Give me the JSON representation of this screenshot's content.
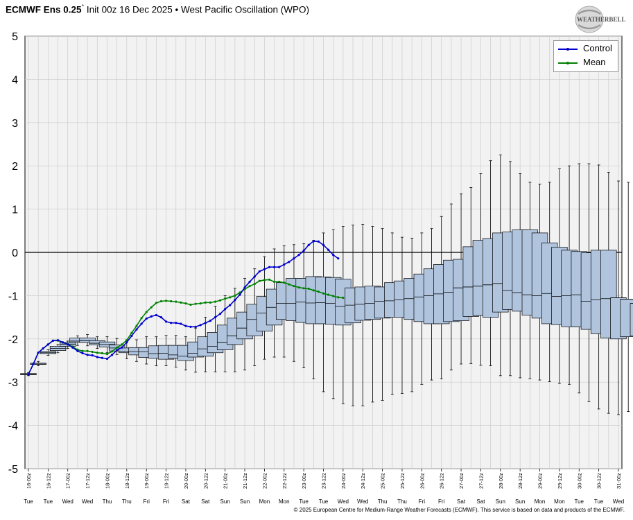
{
  "header": {
    "title_bold": "ECMWF Ens 0.25",
    "title_degree": "°",
    "title_rest": "Init 00z 16 Dec 2025 • West Pacific Oscillation (WPO)"
  },
  "logo": {
    "text": "WEATHERBELL"
  },
  "footer": {
    "credit": "© 2025 European Centre for Medium-Range Weather Forecasts (ECMWF). This service is based on data and products of the ECMWF."
  },
  "colors": {
    "control": "#0000cc",
    "mean": "#008000",
    "box_fill": "#b0c4de",
    "plot_bg": "#f2f2f2",
    "grid": "#cccccc"
  },
  "chart_data": {
    "type": "box-line",
    "ylim": [
      -5,
      5
    ],
    "yticks": [
      5,
      4,
      3,
      2,
      1,
      0,
      -1,
      -2,
      -3,
      -4,
      -5
    ],
    "legend_position": "top-right",
    "grid": true,
    "x_tick_labels": [
      "16-00z",
      "16-12z",
      "17-00z",
      "17-12z",
      "18-00z",
      "18-12z",
      "19-00z",
      "19-12z",
      "20-00z",
      "20-12z",
      "21-00z",
      "21-12z",
      "22-00z",
      "22-12z",
      "23-00z",
      "23-12z",
      "24-00z",
      "24-12z",
      "25-00z",
      "25-12z",
      "26-00z",
      "26-12z",
      "27-00z",
      "27-12z",
      "28-00z",
      "28-12z",
      "29-00z",
      "29-12z",
      "30-00z",
      "30-12z",
      "31-00z"
    ],
    "x_day_labels": [
      "Tue",
      "Tue",
      "Wed",
      "Wed",
      "Thu",
      "Thu",
      "Fri",
      "Fri",
      "Sat",
      "Sat",
      "Sun",
      "Sun",
      "Mon",
      "Mon",
      "Tue",
      "Tue",
      "Wed",
      "Wed",
      "Thu",
      "Thu",
      "Fri",
      "Fri",
      "Sat",
      "Sat",
      "Sun",
      "Sun",
      "Mon",
      "Mon",
      "Tue",
      "Tue",
      "Wed"
    ],
    "series": [
      {
        "name": "Control",
        "color": "#0000cc",
        "values": [
          -2.82,
          -2.58,
          -2.32,
          -2.22,
          -2.13,
          -2.04,
          -2.03,
          -2.08,
          -2.13,
          -2.2,
          -2.28,
          -2.33,
          -2.37,
          -2.38,
          -2.42,
          -2.44,
          -2.46,
          -2.37,
          -2.26,
          -2.2,
          -2.08,
          -1.93,
          -1.78,
          -1.65,
          -1.53,
          -1.48,
          -1.45,
          -1.5,
          -1.6,
          -1.63,
          -1.63,
          -1.65,
          -1.7,
          -1.72,
          -1.72,
          -1.68,
          -1.63,
          -1.58,
          -1.5,
          -1.42,
          -1.31,
          -1.22,
          -1.1,
          -0.98,
          -0.81,
          -0.68,
          -0.56,
          -0.44,
          -0.39,
          -0.34,
          -0.34,
          -0.34,
          -0.28,
          -0.22,
          -0.14,
          -0.06,
          0.04,
          0.17,
          0.26,
          0.25,
          0.17,
          0.06,
          -0.06,
          -0.14
        ]
      },
      {
        "name": "Mean",
        "color": "#008000",
        "values": [
          -2.82,
          -2.58,
          -2.32,
          -2.22,
          -2.13,
          -2.04,
          -2.04,
          -2.08,
          -2.12,
          -2.18,
          -2.25,
          -2.28,
          -2.28,
          -2.3,
          -2.32,
          -2.33,
          -2.35,
          -2.29,
          -2.2,
          -2.13,
          -2.03,
          -1.86,
          -1.7,
          -1.52,
          -1.38,
          -1.27,
          -1.17,
          -1.13,
          -1.12,
          -1.13,
          -1.14,
          -1.16,
          -1.18,
          -1.21,
          -1.19,
          -1.18,
          -1.16,
          -1.16,
          -1.14,
          -1.11,
          -1.07,
          -1.04,
          -1.0,
          -0.93,
          -0.85,
          -0.78,
          -0.73,
          -0.66,
          -0.64,
          -0.63,
          -0.68,
          -0.68,
          -0.7,
          -0.74,
          -0.78,
          -0.81,
          -0.83,
          -0.84,
          -0.88,
          -0.91,
          -0.95,
          -0.98,
          -1.01,
          -1.04,
          -1.05
        ]
      },
      {
        "name": "box-min",
        "values": [
          -2.85,
          -2.62,
          -2.38,
          -2.32,
          -2.22,
          -2.15,
          -2.16,
          -2.22,
          -2.32,
          -2.36,
          -2.46,
          -2.52,
          -2.58,
          -2.62,
          -2.62,
          -2.65,
          -2.72,
          -2.77,
          -2.76,
          -2.76,
          -2.76,
          -2.76,
          -2.72,
          -2.62,
          -2.47,
          -2.42,
          -2.42,
          -2.52,
          -2.67,
          -2.92,
          -3.22,
          -3.38,
          -3.5,
          -3.55,
          -3.55,
          -3.46,
          -3.42,
          -3.28,
          -3.26,
          -3.22,
          -3.05,
          -2.95,
          -2.92,
          -2.72,
          -2.58,
          -2.57,
          -2.61,
          -2.62,
          -2.85,
          -2.85,
          -2.9,
          -2.92,
          -2.95,
          -2.99,
          -3.03,
          -3.05,
          -3.25,
          -3.45,
          -3.62,
          -3.72,
          -3.75,
          -3.68,
          -3.6
        ]
      },
      {
        "name": "box-q1",
        "values": [
          -2.83,
          -2.59,
          -2.34,
          -2.27,
          -2.17,
          -2.08,
          -2.08,
          -2.14,
          -2.19,
          -2.28,
          -2.32,
          -2.37,
          -2.43,
          -2.45,
          -2.47,
          -2.45,
          -2.5,
          -2.42,
          -2.4,
          -2.32,
          -2.25,
          -2.13,
          -2.0,
          -1.93,
          -1.82,
          -1.68,
          -1.55,
          -1.58,
          -1.62,
          -1.65,
          -1.65,
          -1.66,
          -1.68,
          -1.63,
          -1.57,
          -1.55,
          -1.52,
          -1.5,
          -1.5,
          -1.55,
          -1.6,
          -1.65,
          -1.65,
          -1.6,
          -1.58,
          -1.48,
          -1.46,
          -1.5,
          -1.38,
          -1.32,
          -1.36,
          -1.45,
          -1.52,
          -1.65,
          -1.67,
          -1.72,
          -1.72,
          -1.78,
          -1.88,
          -1.98,
          -2.0,
          -1.95,
          -1.93,
          -1.95
        ]
      },
      {
        "name": "box-median",
        "values": [
          -2.82,
          -2.58,
          -2.32,
          -2.22,
          -2.12,
          -2.05,
          -2.04,
          -2.1,
          -2.13,
          -2.21,
          -2.29,
          -2.3,
          -2.3,
          -2.34,
          -2.33,
          -2.37,
          -2.4,
          -2.33,
          -2.23,
          -2.17,
          -2.08,
          -1.93,
          -1.75,
          -1.55,
          -1.4,
          -1.27,
          -1.18,
          -1.18,
          -1.15,
          -1.17,
          -1.16,
          -1.18,
          -1.25,
          -1.22,
          -1.2,
          -1.18,
          -1.13,
          -1.12,
          -1.1,
          -1.07,
          -1.03,
          -1.0,
          -0.96,
          -0.92,
          -0.82,
          -0.8,
          -0.78,
          -0.75,
          -0.72,
          -0.88,
          -0.93,
          -0.98,
          -1.0,
          -0.95,
          -1.02,
          -1.0,
          -0.98,
          -1.13,
          -1.1,
          -1.07,
          -1.05,
          -1.08,
          -1.18,
          -1.3
        ]
      },
      {
        "name": "box-q3",
        "values": [
          -2.8,
          -2.56,
          -2.29,
          -2.17,
          -2.08,
          -1.98,
          -1.98,
          -2.04,
          -2.07,
          -2.14,
          -2.21,
          -2.2,
          -2.2,
          -2.16,
          -2.15,
          -2.15,
          -2.15,
          -2.07,
          -1.95,
          -1.85,
          -1.68,
          -1.52,
          -1.38,
          -1.2,
          -1.02,
          -0.85,
          -0.7,
          -0.6,
          -0.6,
          -0.56,
          -0.57,
          -0.58,
          -0.62,
          -0.82,
          -0.8,
          -0.78,
          -0.8,
          -0.7,
          -0.66,
          -0.6,
          -0.5,
          -0.38,
          -0.28,
          -0.18,
          -0.16,
          0.13,
          0.28,
          0.32,
          0.45,
          0.47,
          0.52,
          0.52,
          0.45,
          0.22,
          0.12,
          0.05,
          0.02,
          -0.01,
          0.05,
          0.05
        ]
      },
      {
        "name": "box-max",
        "values": [
          -2.78,
          -2.52,
          -2.25,
          -2.13,
          -2.05,
          -1.93,
          -1.9,
          -1.95,
          -1.95,
          -1.99,
          -2.02,
          -2.02,
          -1.95,
          -1.95,
          -1.92,
          -1.92,
          -1.95,
          -1.75,
          -1.5,
          -1.25,
          -1.0,
          -0.83,
          -0.6,
          -0.38,
          -0.1,
          0.08,
          0.15,
          0.18,
          0.2,
          0.28,
          0.45,
          0.52,
          0.6,
          0.63,
          0.65,
          0.6,
          0.55,
          0.45,
          0.35,
          0.33,
          0.45,
          0.55,
          0.83,
          1.12,
          1.35,
          1.5,
          1.82,
          2.12,
          2.25,
          2.1,
          1.82,
          1.62,
          1.58,
          1.62,
          1.93,
          2.0,
          2.05,
          2.05,
          2.02,
          1.85,
          1.65,
          1.62
        ]
      }
    ]
  },
  "legend": {
    "control_label": "Control",
    "mean_label": "Mean"
  }
}
